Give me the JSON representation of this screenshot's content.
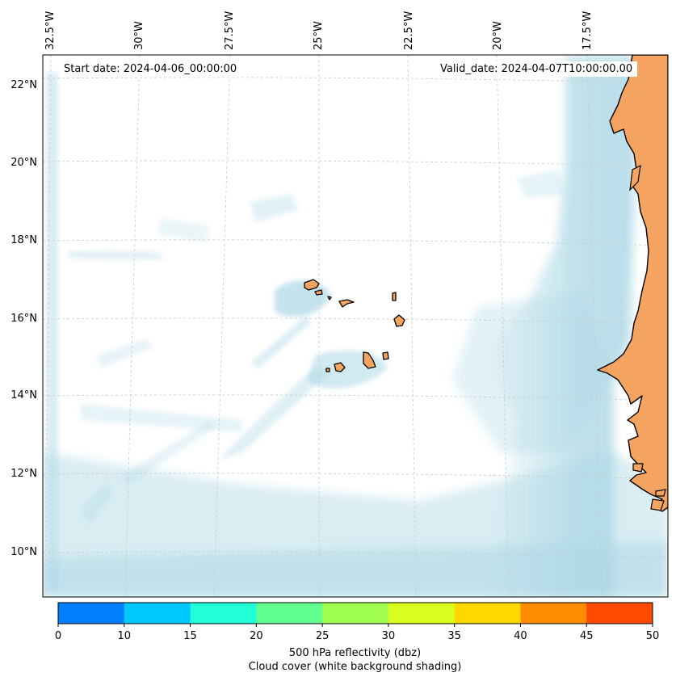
{
  "header": {
    "start_date": "Start date: 2024-04-06_00:00:00",
    "valid_date": "Valid_date: 2024-04-07T10:00:00.00"
  },
  "map": {
    "longitude_labels": [
      "32.5°W",
      "30°W",
      "27.5°W",
      "25°W",
      "22.5°W",
      "20°W",
      "17.5°W"
    ],
    "latitude_labels": [
      "22°N",
      "20°N",
      "18°N",
      "16°N",
      "14°N",
      "12°N",
      "10°N"
    ],
    "colors": {
      "land": "#f4a460",
      "cloud": "#add8e6",
      "coastline": "#000000",
      "gridline": "#c8c8c8"
    }
  },
  "colorbar": {
    "ticks": [
      "0",
      "10",
      "15",
      "20",
      "25",
      "30",
      "35",
      "40",
      "45",
      "50"
    ],
    "colors": [
      "#0080ff",
      "#00c8ff",
      "#20ffd8",
      "#60ff90",
      "#a0ff50",
      "#d8ff20",
      "#ffd800",
      "#ff8c00",
      "#ff4a00"
    ],
    "label_line1": "500 hPa reflectivity (dbz)",
    "label_line2": "Cloud cover (white background shading)"
  }
}
